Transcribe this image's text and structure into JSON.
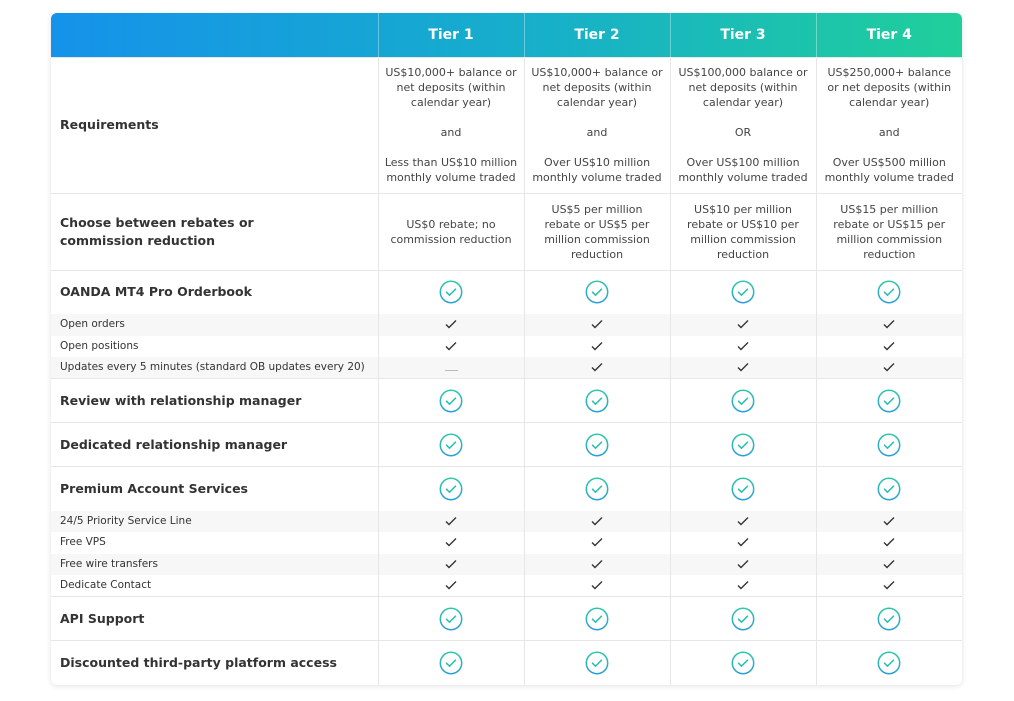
{
  "header": {
    "tiers": [
      "Tier 1",
      "Tier 2",
      "Tier 3",
      "Tier 4"
    ]
  },
  "colors": {
    "gradient_start": "#1592ea",
    "gradient_end": "#20cf9a",
    "check_circle": "#2bbfb0"
  },
  "rows": [
    {
      "type": "text",
      "label": "Requirements",
      "cells": [
        [
          "US$10,000+ balance or net deposits (within calendar year)",
          "and",
          "Less than US$10 million monthly volume traded"
        ],
        [
          "US$10,000+ balance or net deposits (within calendar year)",
          "and",
          "Over US$10 million monthly volume traded"
        ],
        [
          "US$100,000 balance or net deposits (within calendar year)",
          "OR",
          "Over US$100 million monthly volume traded"
        ],
        [
          "US$250,000+ balance or net deposits (within calendar year)",
          "and",
          "Over US$500 million monthly volume traded"
        ]
      ]
    },
    {
      "type": "text2",
      "label": "Choose between rebates or commission reduction",
      "cells": [
        "US$0 rebate; no commission reduction",
        "US$5 per million rebate or US$5 per million commission reduction",
        "US$10 per million rebate or US$10 per million commission reduction",
        "US$15 per million rebate or US$15 per million commission reduction"
      ]
    },
    {
      "type": "main",
      "label": "OANDA MT4 Pro Orderbook",
      "cells": [
        "check",
        "check",
        "check",
        "check"
      ]
    },
    {
      "type": "sub",
      "label": "Open orders",
      "cells": [
        "tick",
        "tick",
        "tick",
        "tick"
      ]
    },
    {
      "type": "sub",
      "label": "Open positions",
      "cells": [
        "tick",
        "tick",
        "tick",
        "tick"
      ]
    },
    {
      "type": "sub",
      "label": "Updates every 5 minutes (standard OB updates every 20)",
      "cells": [
        "dash",
        "tick",
        "tick",
        "tick"
      ]
    },
    {
      "type": "main",
      "label": "Review with relationship manager",
      "cells": [
        "check",
        "check",
        "check",
        "check"
      ]
    },
    {
      "type": "main",
      "label": "Dedicated relationship manager",
      "cells": [
        "check",
        "check",
        "check",
        "check"
      ]
    },
    {
      "type": "main",
      "label": "Premium Account Services",
      "cells": [
        "check",
        "check",
        "check",
        "check"
      ]
    },
    {
      "type": "sub",
      "label": "24/5 Priority Service Line",
      "cells": [
        "tick",
        "tick",
        "tick",
        "tick"
      ]
    },
    {
      "type": "sub",
      "label": "Free VPS",
      "cells": [
        "tick",
        "tick",
        "tick",
        "tick"
      ]
    },
    {
      "type": "sub",
      "label": "Free wire transfers",
      "cells": [
        "tick",
        "tick",
        "tick",
        "tick"
      ]
    },
    {
      "type": "sub",
      "label": "Dedicate Contact",
      "cells": [
        "tick",
        "tick",
        "tick",
        "tick"
      ]
    },
    {
      "type": "main",
      "label": "API Support",
      "cells": [
        "check",
        "check",
        "check",
        "check"
      ]
    },
    {
      "type": "main",
      "label": "Discounted third-party platform access",
      "cells": [
        "check",
        "check",
        "check",
        "check"
      ]
    }
  ]
}
